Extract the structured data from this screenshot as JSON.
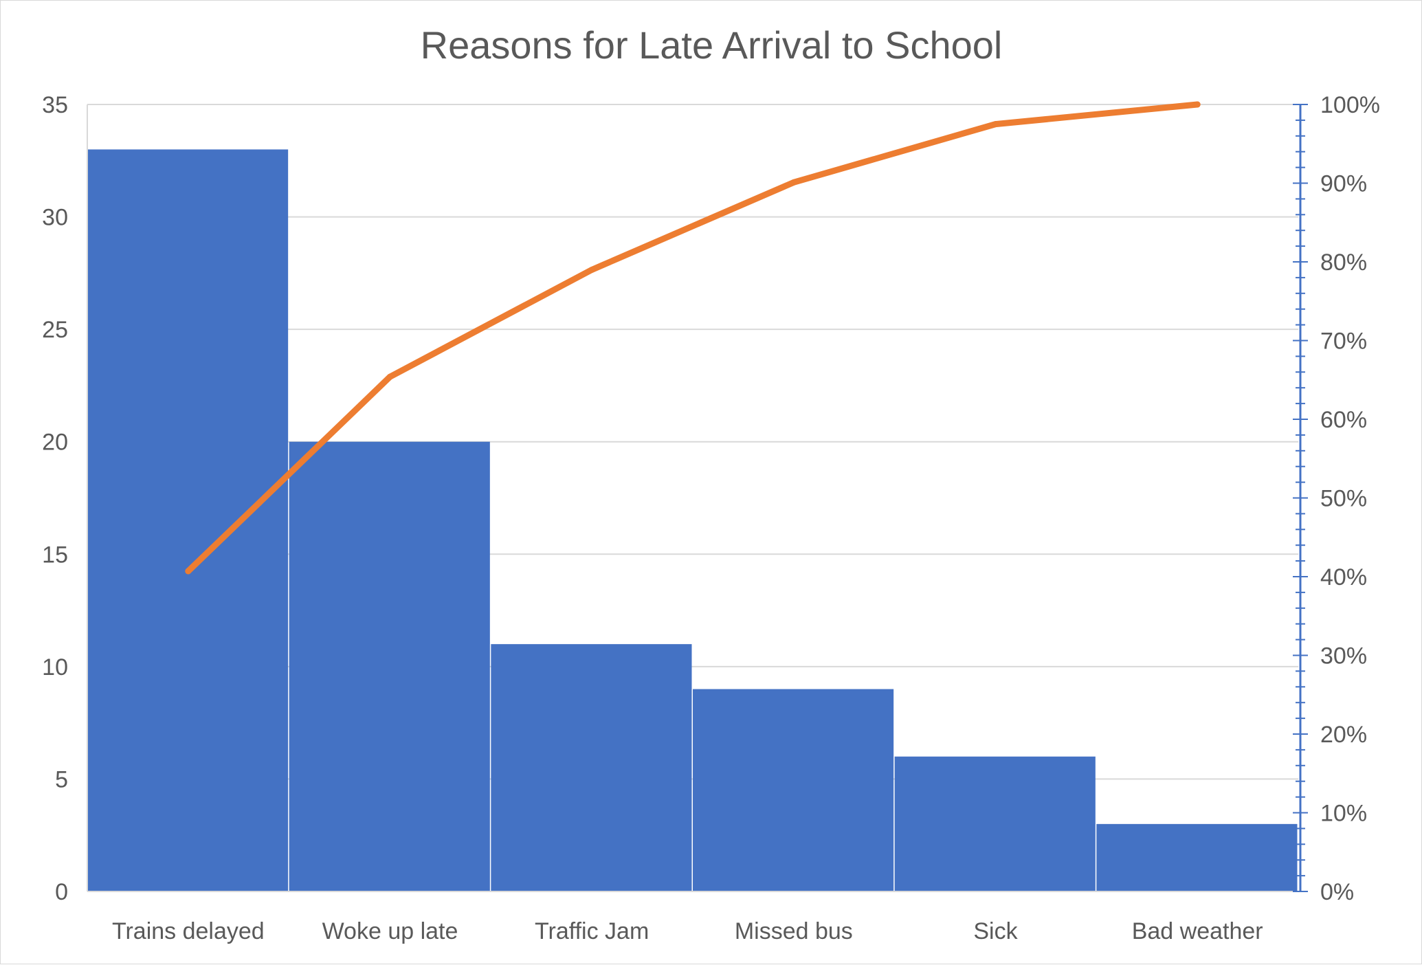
{
  "chart_data": {
    "type": "bar",
    "title": "Reasons for Late Arrival to School",
    "xlabel": "",
    "ylabel": "",
    "categories": [
      "Trains delayed",
      "Woke up late",
      "Traffic Jam",
      "Missed bus",
      "Sick",
      "Bad weather"
    ],
    "series": [
      {
        "type": "bar",
        "values": [
          33,
          20,
          11,
          9,
          6,
          3
        ],
        "color": "#4472C4",
        "axis": "left"
      },
      {
        "type": "line",
        "values": [
          40.7,
          65.4,
          79.0,
          90.1,
          97.5,
          100.0
        ],
        "unit": "%",
        "color": "#ED7D31",
        "axis": "right"
      }
    ],
    "y_left": {
      "ylim": [
        0,
        35
      ],
      "ticks": [
        "0",
        "5",
        "10",
        "15",
        "20",
        "25",
        "30",
        "35"
      ]
    },
    "y_right": {
      "ylim": [
        0,
        100
      ],
      "ticks": [
        "0%",
        "10%",
        "20%",
        "30%",
        "40%",
        "50%",
        "60%",
        "70%",
        "80%",
        "90%",
        "100%"
      ]
    },
    "grid": true,
    "legend": "none",
    "colors": {
      "bar": "#4472C4",
      "line": "#ED7D31",
      "gridline": "#d9d9d9",
      "text": "#595959",
      "right_axis": "#4472C4"
    }
  }
}
